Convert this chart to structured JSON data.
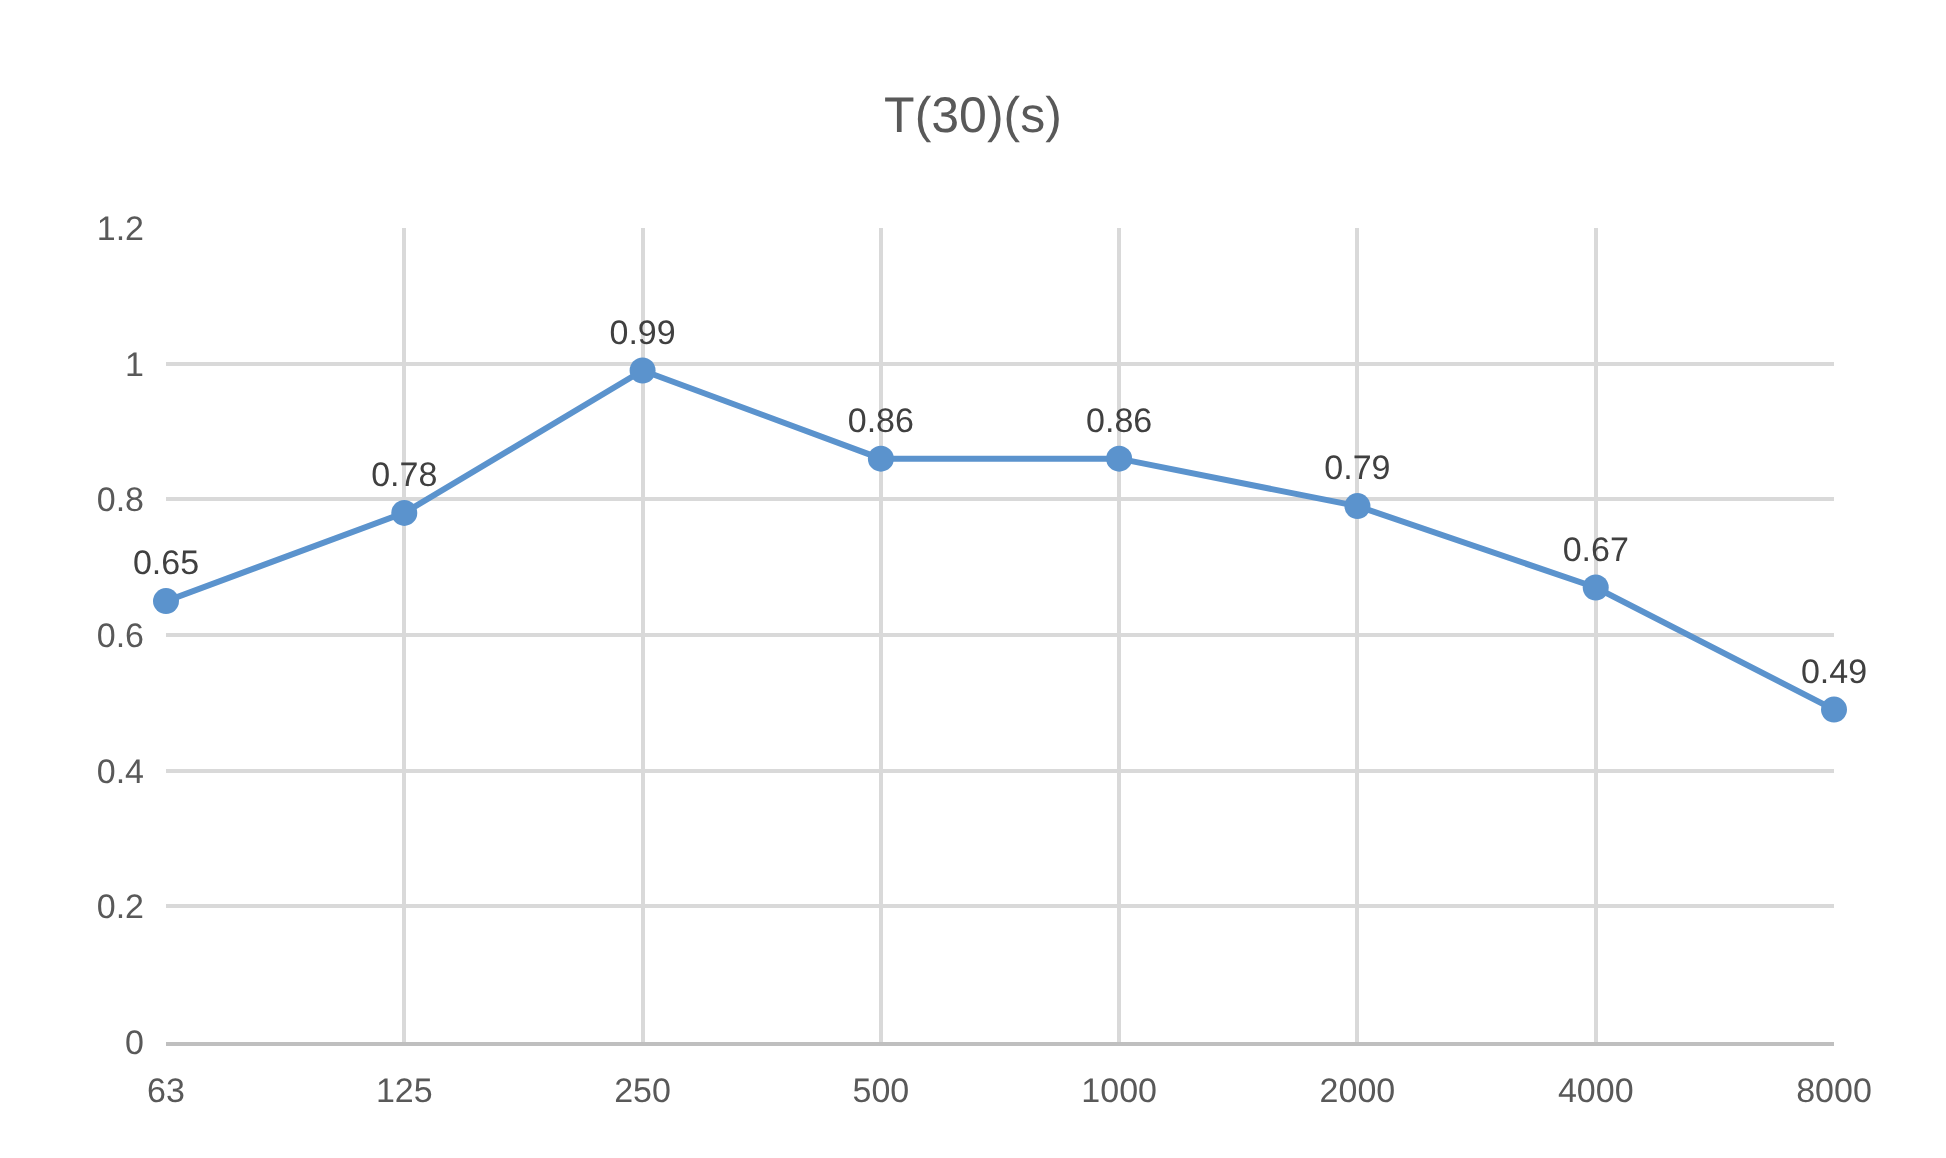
{
  "chart_data": {
    "type": "line",
    "title": "T(30)(s)",
    "categories": [
      "63",
      "125",
      "250",
      "500",
      "1000",
      "2000",
      "4000",
      "8000"
    ],
    "series": [
      {
        "color": "#5b93cd",
        "values": [
          0.65,
          0.78,
          0.99,
          0.86,
          0.86,
          0.79,
          0.67,
          0.49
        ]
      }
    ],
    "ylim": [
      0,
      1.2
    ],
    "yticks": [
      0,
      0.2,
      0.4,
      0.6,
      0.8,
      1,
      1.2
    ],
    "grid": true,
    "marker": "circle",
    "line_style": "solid",
    "data_labels": true
  }
}
